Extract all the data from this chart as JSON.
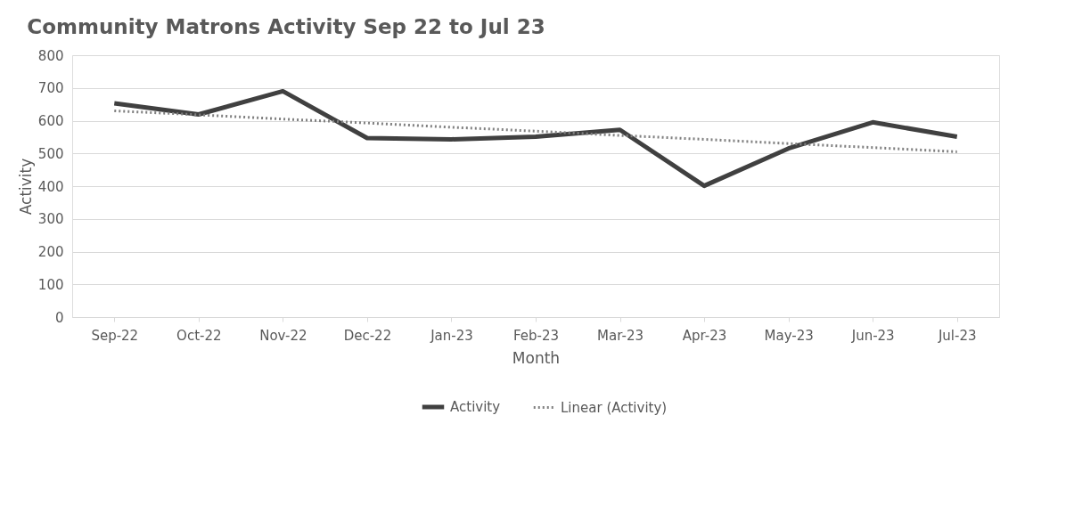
{
  "chart_data": {
    "type": "line",
    "title": "Community Matrons Activity Sep 22 to Jul 23",
    "xlabel": "Month",
    "ylabel": "Activity",
    "categories": [
      "Sep-22",
      "Oct-22",
      "Nov-22",
      "Dec-22",
      "Jan-23",
      "Feb-23",
      "Mar-23",
      "Apr-23",
      "May-23",
      "Jun-23",
      "Jul-23"
    ],
    "series": [
      {
        "name": "Activity",
        "color": "#404040",
        "line_style": "solid",
        "values": [
          653,
          619,
          690,
          547,
          543,
          551,
          572,
          401,
          515,
          595,
          551
        ]
      },
      {
        "name": "Linear (Activity)",
        "color": "#808080",
        "line_style": "dotted",
        "values": [
          630,
          618,
          605,
          593,
          580,
          568,
          555,
          543,
          530,
          518,
          505
        ]
      }
    ],
    "ylim": [
      0,
      800
    ],
    "yticks": [
      0,
      100,
      200,
      300,
      400,
      500,
      600,
      700,
      800
    ],
    "grid": "y",
    "legend": "bottom",
    "marker": "none"
  }
}
